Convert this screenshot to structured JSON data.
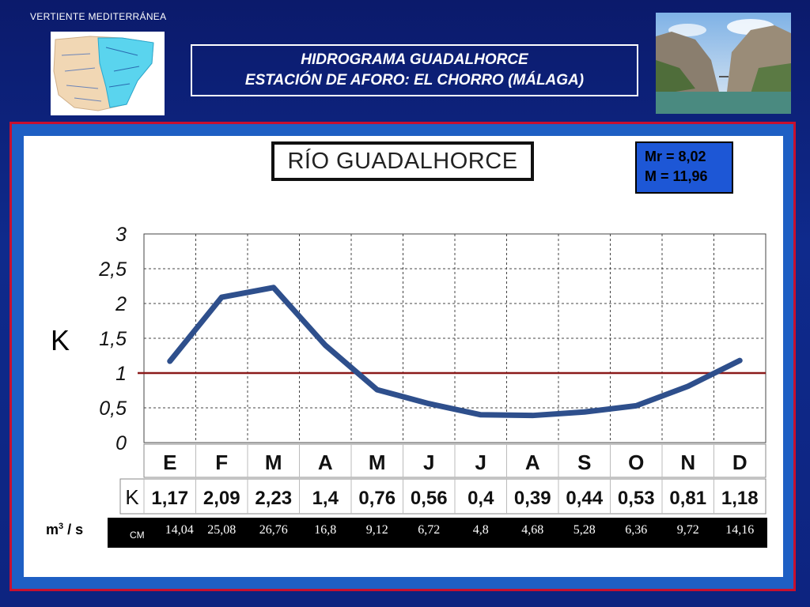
{
  "header": {
    "region": "VERTIENTE  MEDITERRÁNEA",
    "title_line1": "HIDROGRAMA  GUADALHORCE",
    "title_line2": "ESTACIÓN DE AFORO:  EL CHORRO (MÁLAGA)"
  },
  "river_title": "RÍO GUADALHORCE",
  "stats": {
    "mr": "Mr = 8,02",
    "m": "M = 11,96"
  },
  "colors": {
    "line": "#2e4f8c",
    "reference": "#8b1a1a",
    "background": "#0f2a8c",
    "stats_box": "#1d57d6",
    "frame": "#c8102e"
  },
  "chart_data": {
    "type": "line",
    "ylabel": "K",
    "ylim": [
      0,
      3
    ],
    "yticks": [
      "0",
      "0,5",
      "1",
      "1,5",
      "2",
      "2,5",
      "3"
    ],
    "ytick_values": [
      0,
      0.5,
      1,
      1.5,
      2,
      2.5,
      3
    ],
    "grid": true,
    "reference_line": 1,
    "categories": [
      "E",
      "F",
      "M",
      "A",
      "M",
      "J",
      "J",
      "A",
      "S",
      "O",
      "N",
      "D"
    ],
    "k_row_label": "K",
    "values": [
      1.17,
      2.09,
      2.23,
      1.4,
      0.76,
      0.56,
      0.4,
      0.39,
      0.44,
      0.53,
      0.81,
      1.18
    ],
    "value_labels": [
      "1,17",
      "2,09",
      "2,23",
      "1,4",
      "0,76",
      "0,56",
      "0,4",
      "0,39",
      "0,44",
      "0,53",
      "0,81",
      "1,18"
    ],
    "flow_unit": "m3 / s",
    "flow_row_label": "CM",
    "flow_labels": [
      "14,04",
      "25,08",
      "26,76",
      "16,8",
      "9,12",
      "6,72",
      "4,8",
      "4,68",
      "5,28",
      "6,36",
      "9,72",
      "14,16"
    ]
  }
}
